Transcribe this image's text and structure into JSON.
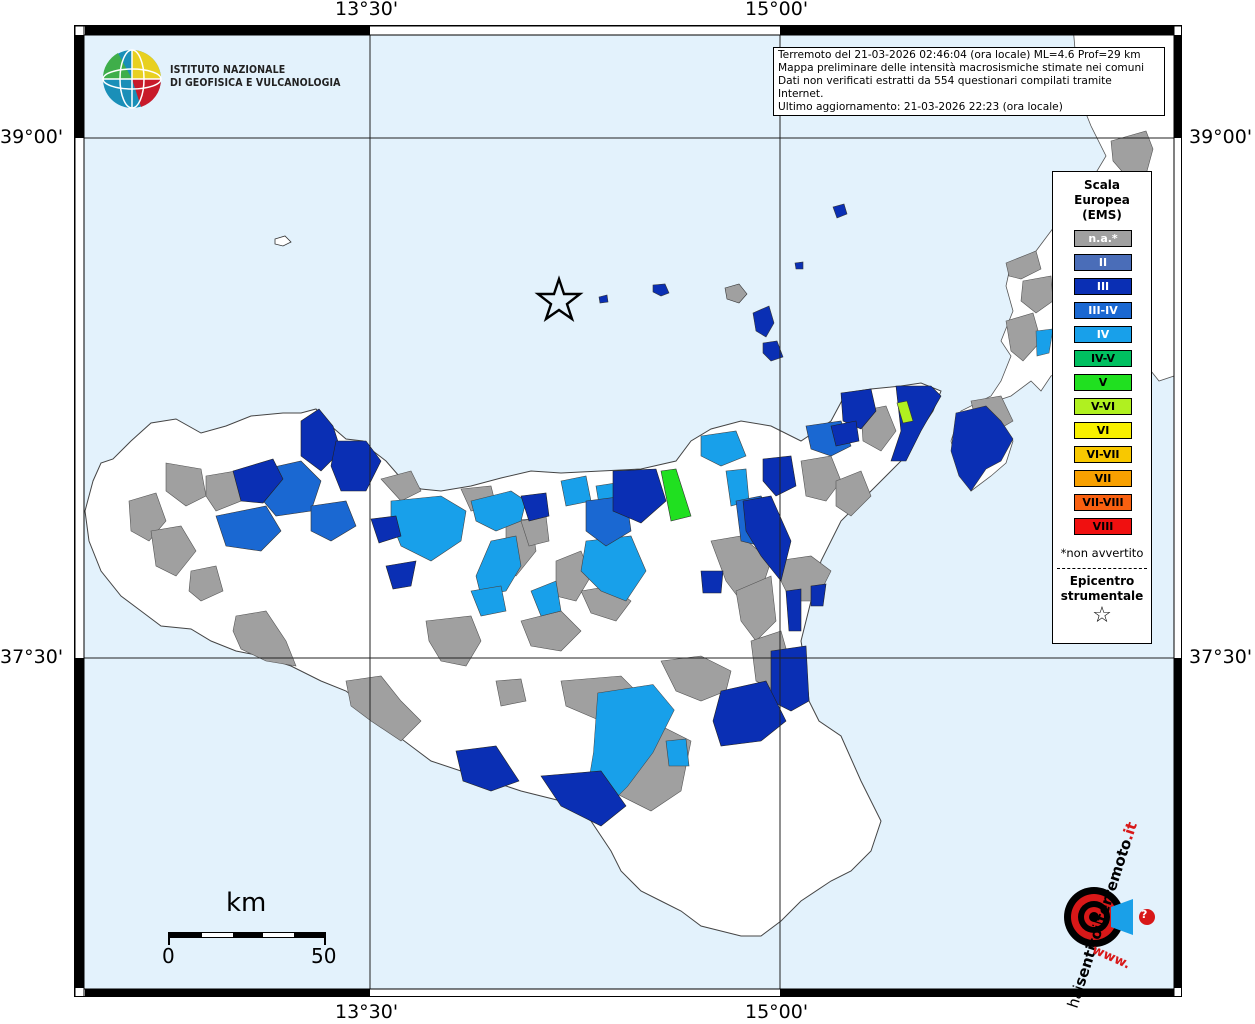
{
  "coordinates": {
    "top_left_lon": "13°30'",
    "top_right_lon": "15°00'",
    "bottom_left_lon": "13°30'",
    "bottom_right_lon": "15°00'",
    "left_upper_lat": "39°00'",
    "left_lower_lat": "37°30'",
    "right_upper_lat": "39°00'",
    "right_lower_lat": "37°30'"
  },
  "logo": {
    "line1": "ISTITUTO NAZIONALE",
    "line2": "DI GEOFISICA E VULCANOLOGIA"
  },
  "info": {
    "line1": "Terremoto del 21-03-2026 02:46:04 (ora locale) ML=4.6 Prof=29 km",
    "line2": "Mappa preliminare delle intensità macrosismiche stimate nei comuni",
    "line3": "Dati non verificati estratti da 554 questionari compilati tramite Internet.",
    "line4": "Ultimo aggiornamento: 21-03-2026 22:23 (ora locale)"
  },
  "legend": {
    "title1": "Scala",
    "title2": "Europea",
    "title3": "(EMS)",
    "items": [
      {
        "label": "n.a.*",
        "color": "#a0a0a0",
        "text_color": "#ffffff"
      },
      {
        "label": "II",
        "color": "#4a6db8",
        "text_color": "#ffffff"
      },
      {
        "label": "III",
        "color": "#0a2fb4",
        "text_color": "#ffffff"
      },
      {
        "label": "III-IV",
        "color": "#1a68d2",
        "text_color": "#ffffff"
      },
      {
        "label": "IV",
        "color": "#18a0ea",
        "text_color": "#ffffff"
      },
      {
        "label": "IV-V",
        "color": "#00c060",
        "text_color": "#000000"
      },
      {
        "label": "V",
        "color": "#20e020",
        "text_color": "#000000"
      },
      {
        "label": "V-VI",
        "color": "#b0f020",
        "text_color": "#000000"
      },
      {
        "label": "VI",
        "color": "#f8f000",
        "text_color": "#000000"
      },
      {
        "label": "VI-VII",
        "color": "#f8c800",
        "text_color": "#000000"
      },
      {
        "label": "VII",
        "color": "#f8a000",
        "text_color": "#000000"
      },
      {
        "label": "VII-VIII",
        "color": "#f86010",
        "text_color": "#000000"
      },
      {
        "label": "VIII",
        "color": "#f01010",
        "text_color": "#000000"
      }
    ],
    "note": "*non avvertito",
    "epicenter1": "Epicentro",
    "epicenter2": "strumentale",
    "epicenter_symbol": "☆"
  },
  "scalebar": {
    "unit": "km",
    "min": "0",
    "max": "50"
  },
  "brand": {
    "name": "haisentitoilterremoto.it",
    "www": "www.",
    "hai": "hai",
    "sentito": "sentito",
    "il": "il",
    "terremoto": "terremoto",
    "it": ".it",
    "question": "?"
  },
  "colors": {
    "sea": "#e3f2fc",
    "land": "#ffffff",
    "na": "#a0a0a0",
    "ii": "#4a6db8",
    "iii": "#0a2fb4",
    "iiiiv": "#1a68d2",
    "iv": "#18a0ea",
    "v": "#20e020",
    "vvi": "#b0f020",
    "brand_red": "#d81818"
  }
}
